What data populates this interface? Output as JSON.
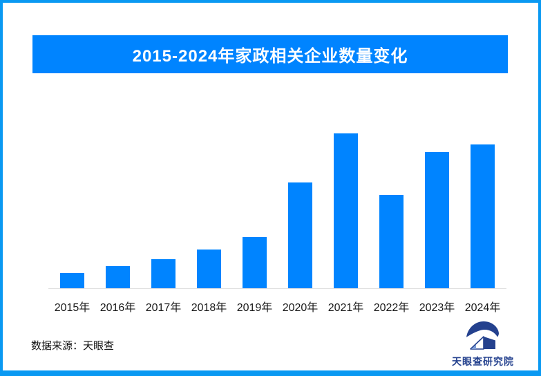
{
  "page": {
    "border_color": "#0a99f2",
    "background_color": "#ffffff"
  },
  "header": {
    "title": "2015-2024年家政相关企业数量变化",
    "banner_color": "#0084ff",
    "title_color": "#ffffff"
  },
  "chart_data": {
    "type": "bar",
    "title": "2015-2024年家政相关企业数量变化",
    "categories": [
      "2015年",
      "2016年",
      "2017年",
      "2018年",
      "2019年",
      "2020年",
      "2021年",
      "2022年",
      "2023年",
      "2024年"
    ],
    "values": [
      22,
      32,
      42,
      56,
      74,
      153,
      224,
      135,
      197,
      208
    ],
    "value_unit": "relative (no y-axis scale shown in image)",
    "xlabel": "",
    "ylabel": "",
    "ylim": [
      0,
      240
    ],
    "grid": false,
    "legend": false,
    "bar_color": "#0084ff",
    "axis_line_color": "#e0e0e0"
  },
  "footer": {
    "source_label": "数据来源：天眼查",
    "logo_text": "天眼查研究院",
    "logo_color": "#24418e",
    "logo_light_color": "#7e9ed8"
  }
}
